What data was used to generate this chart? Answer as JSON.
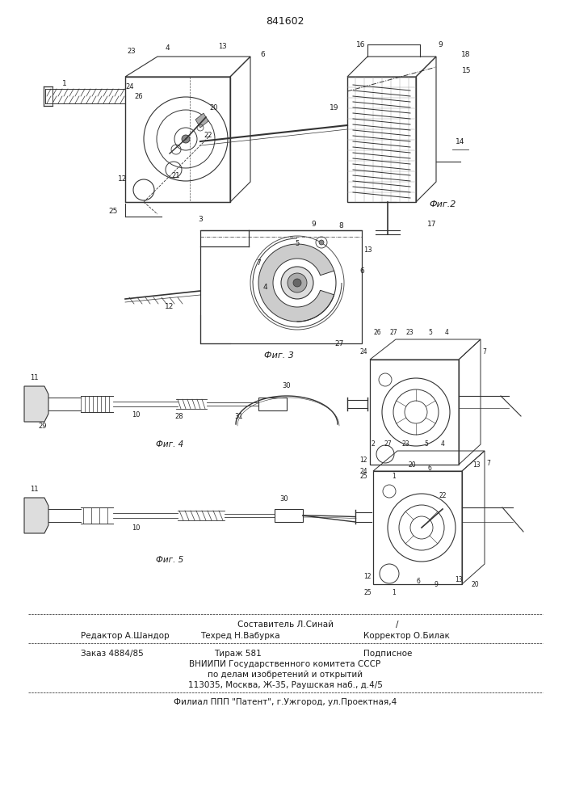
{
  "patent_number": "841602",
  "fig2_label": "Фиг.2",
  "fig3_label": "Фиг. 3",
  "fig4_label": "Фиг. 4",
  "fig5_label": "Фиг. 5",
  "footer_staff_center_top": "Составитель Л.Синай",
  "footer_staff_slash": "/",
  "footer_left1": "Редактор А.Шандор",
  "footer_center1": "Техред Н.Вабурка",
  "footer_right1": "Корректор О.Билак",
  "footer_order": "Заказ 4884/85",
  "footer_tirazh": "Тираж 581",
  "footer_podpisnoe": "Подписное",
  "footer_vniipи": "ВНИИПИ Государственного комитета СССР",
  "footer_po_delam": "по делам изобретений и открытий",
  "footer_address": "113035, Москва, Ж-35, Раушская наб., д.4/5",
  "footer_filial": "Филиал ППП \"Патент\", г.Ужгород, ул.Проектная,4",
  "tc": "#1a1a1a",
  "lc": "#333333"
}
